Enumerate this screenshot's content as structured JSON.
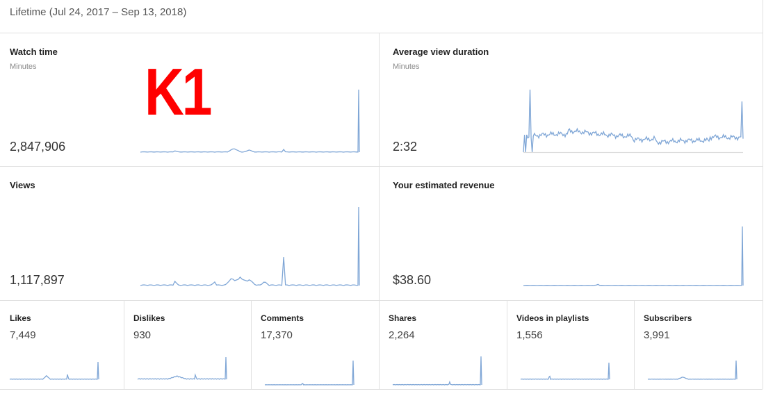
{
  "header": {
    "title": "Lifetime (Jul 24, 2017 – Sep 13, 2018)"
  },
  "overlay": {
    "label": "K1"
  },
  "cards": [
    {
      "title": "Watch time",
      "subtitle": "Minutes",
      "value": "2,847,906"
    },
    {
      "title": "Average view duration",
      "subtitle": "Minutes",
      "value": "2:32"
    },
    {
      "title": "Views",
      "value": "1,117,897"
    },
    {
      "title": "Your estimated revenue",
      "value": "$38.60"
    }
  ],
  "small_cards": [
    {
      "title": "Likes",
      "value": "7,449"
    },
    {
      "title": "Dislikes",
      "value": "930"
    },
    {
      "title": "Comments",
      "value": "17,370"
    },
    {
      "title": "Shares",
      "value": "2,264"
    },
    {
      "title": "Videos in playlists",
      "value": "1,556"
    },
    {
      "title": "Subscribers",
      "value": "3,991"
    }
  ]
}
